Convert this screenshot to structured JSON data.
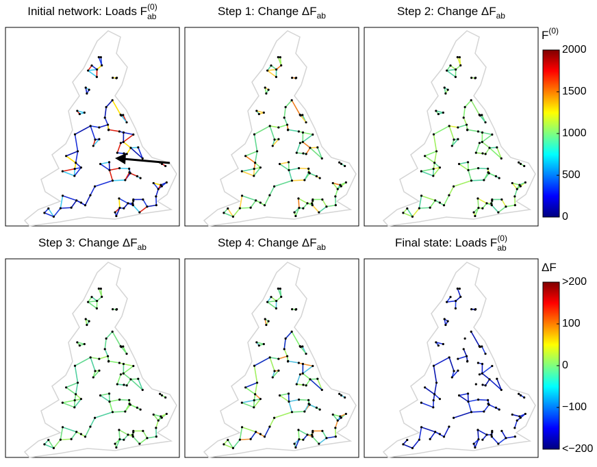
{
  "figure": {
    "panels": [
      {
        "title": {
          "text": "Initial network: Loads F",
          "sup": "(0)",
          "sub": "ab"
        }
      },
      {
        "title": {
          "text": "Step 1: Change ΔF",
          "sub": "ab"
        }
      },
      {
        "title": {
          "text": "Step 2: Change ΔF",
          "sub": "ab"
        }
      },
      {
        "title": {
          "text": "Step 3: Change ΔF",
          "sub": "ab"
        }
      },
      {
        "title": {
          "text": "Step 4: Change ΔF",
          "sub": "ab"
        }
      },
      {
        "title": {
          "text": "Final state: Loads F",
          "sup": "(0)",
          "sub": "ab"
        }
      }
    ],
    "colorbars": [
      {
        "label": {
          "text": "F",
          "sup": "(0)"
        },
        "colormap": "jet",
        "ylim": [
          0,
          2000
        ],
        "yticks": [
          0,
          500,
          1000,
          1500,
          2000
        ]
      },
      {
        "label": {
          "text": "ΔF"
        },
        "colormap": "jet",
        "ylim": [
          -200,
          200
        ],
        "yticks": [
          {
            "value": -200,
            "label": "<−200"
          },
          {
            "value": -100,
            "label": "−100"
          },
          0,
          100,
          {
            "value": 200,
            "label": ">200"
          }
        ]
      }
    ]
  }
}
